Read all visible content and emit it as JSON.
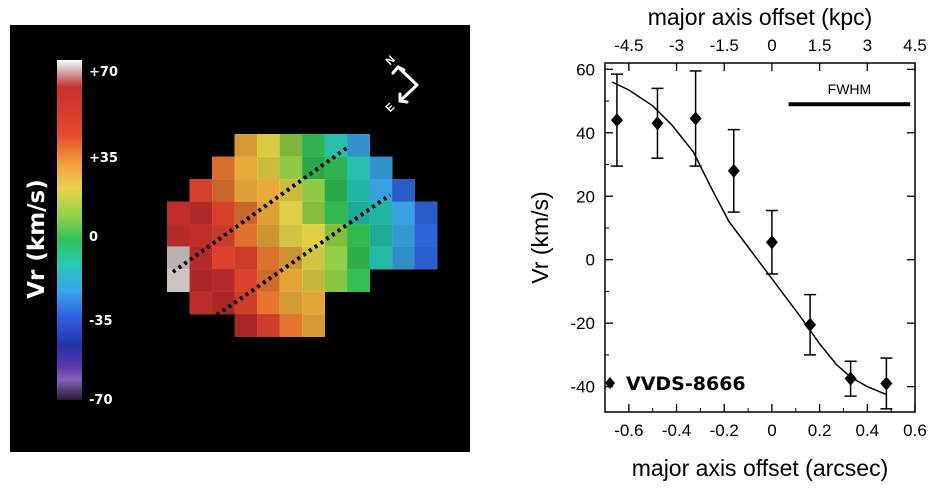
{
  "colorbar": {
    "title": "Vr (km/s)",
    "ticks": [
      "+70",
      "+35",
      "0",
      "-35",
      "-70"
    ]
  },
  "compass": {
    "north": "N",
    "east": "E"
  },
  "map_colors": [
    "#c8302e",
    "#e54530",
    "#ef7a32",
    "#f4b13c",
    "#e9d84a",
    "#9ad84a",
    "#35c756",
    "#26c9b5",
    "#3aa8ea",
    "#2f6ae4",
    "#ddd2d0"
  ],
  "chart_data": {
    "type": "scatter",
    "xlabel": "major axis offset (arcsec)",
    "ylabel": "Vr (km/s)",
    "xlim": [
      -0.7,
      0.6
    ],
    "ylim": [
      -48,
      62
    ],
    "xticks": [
      -0.6,
      -0.4,
      -0.2,
      0,
      0.2,
      0.4,
      0.6
    ],
    "yticks": [
      -40,
      -20,
      0,
      20,
      40,
      60
    ],
    "top_axis": {
      "label": "major axis offset (kpc)",
      "ticks": [
        -4.5,
        -3,
        -1.5,
        0,
        1.5,
        3,
        4.5
      ],
      "tick_labels": [
        "-4.5",
        "-3",
        "-1.5",
        "0",
        "1.5",
        "3",
        "4.5"
      ],
      "kpc_per_arcsec": 7.5
    },
    "series": [
      {
        "name": "VVDS-8666",
        "marker": "diamond",
        "x": [
          -0.65,
          -0.48,
          -0.32,
          -0.16,
          0.0,
          0.16,
          0.33,
          0.48
        ],
        "y": [
          44,
          43,
          44.5,
          28,
          5.5,
          -20.5,
          -37.5,
          -39
        ],
        "yerr": [
          14.5,
          11,
          15,
          13,
          10,
          9.5,
          5.5,
          8
        ]
      },
      {
        "type": "line",
        "x": [
          -0.67,
          -0.6,
          -0.5,
          -0.42,
          -0.33,
          -0.25,
          -0.18,
          -0.1,
          -0.02,
          0.05,
          0.12,
          0.2,
          0.27,
          0.33,
          0.4,
          0.48
        ],
        "y": [
          56,
          53.5,
          48.5,
          42.5,
          34,
          22,
          12,
          4,
          -4,
          -11,
          -18,
          -26.5,
          -33,
          -37,
          -40,
          -42.5
        ]
      }
    ],
    "annotation": "FWHM",
    "fwhm_x": [
      0.07,
      0.58
    ],
    "fwhm_y": 49
  }
}
